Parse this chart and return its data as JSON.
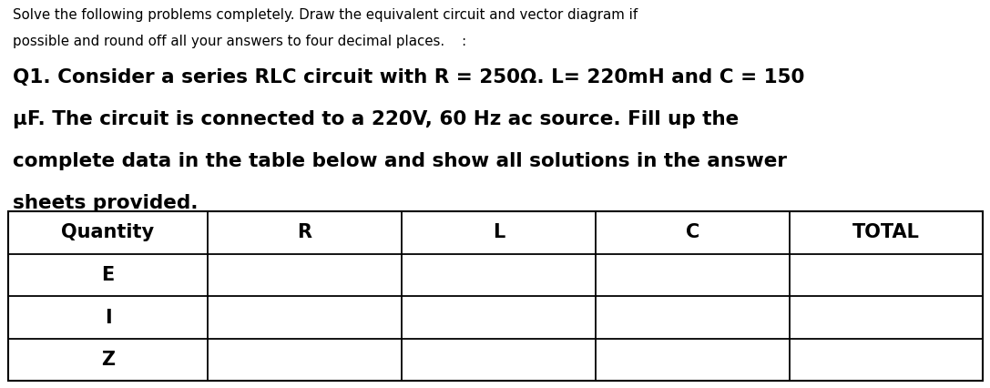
{
  "background_color": "#ffffff",
  "text_color": "#000000",
  "small_line1": "Solve the following problems completely. Draw the equivalent circuit and vector diagram if",
  "small_line2": "possible and round off all your answers to four decimal places.    :",
  "bold_line1": "Q1. Consider a series RLC circuit with R = 250Ω. L= 220mH and C = 150",
  "bold_line2": "μF. The circuit is connected to a 220V, 60 Hz ac source. Fill up the",
  "bold_line3": "complete data in the table below and show all solutions in the answer",
  "bold_line4": "sheets provided.",
  "table_columns": [
    "Quantity",
    "R",
    "L",
    "C",
    "TOTAL"
  ],
  "table_rows": [
    "E",
    "I",
    "Z"
  ],
  "fig_width": 10.87,
  "fig_height": 4.26,
  "dpi": 100,
  "small_font_size": 10.8,
  "bold_font_size": 15.5,
  "table_header_font_size": 15,
  "table_cell_font_size": 15,
  "col_proportions": [
    0.205,
    0.1988,
    0.1988,
    0.1988,
    0.1988
  ]
}
